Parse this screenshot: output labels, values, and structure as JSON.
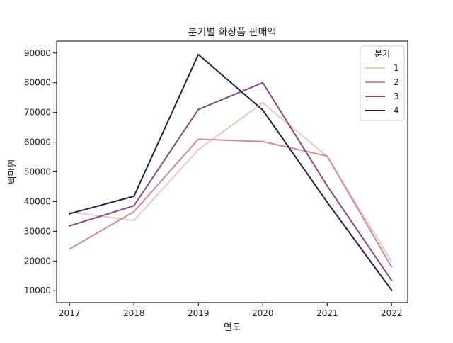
{
  "chart_data": {
    "type": "line",
    "title": "분기별 화장품 판매액",
    "xlabel": "연도",
    "ylabel": "백만원",
    "x": [
      2017,
      2018,
      2019,
      2020,
      2021,
      2022
    ],
    "xlim": [
      2016.8,
      2022.25
    ],
    "ylim": [
      6000,
      94000
    ],
    "yticks": [
      10000,
      20000,
      30000,
      40000,
      50000,
      60000,
      70000,
      80000,
      90000
    ],
    "grid": false,
    "legend": {
      "title": "분기",
      "position": "top-right"
    },
    "series": [
      {
        "name": "1",
        "color": "#ecc8c1",
        "values": [
          36500,
          33600,
          57500,
          73200,
          55200,
          19800
        ]
      },
      {
        "name": "2",
        "color": "#cc8aa3",
        "values": [
          24000,
          36600,
          61000,
          60200,
          55300,
          18000
        ]
      },
      {
        "name": "3",
        "color": "#864c7f",
        "values": [
          31800,
          38600,
          71000,
          80000,
          45300,
          13500
        ]
      },
      {
        "name": "4",
        "color": "#2d1e3e",
        "values": [
          35900,
          41800,
          89500,
          70800,
          39800,
          10200
        ]
      }
    ]
  }
}
